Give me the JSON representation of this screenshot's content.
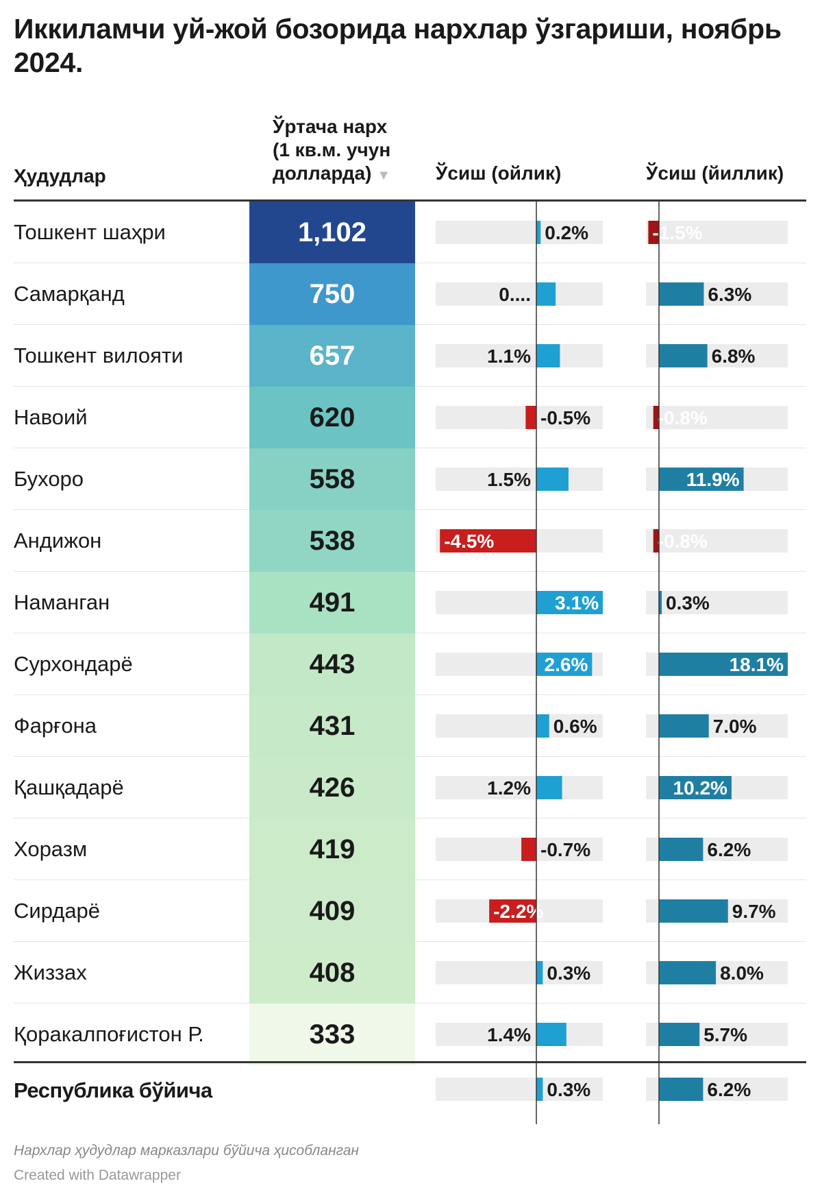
{
  "title": "Иккиламчи уй-жой бозорида нархлар ўзгариши, ноябрь 2024.",
  "headers": {
    "region": "Ҳудудлар",
    "price_line1": "Ўртача нарх",
    "price_line2": "(1 кв.м. учун",
    "price_line3": "долларда)",
    "sort_icon": "▼",
    "monthly": "Ўсиш (ойлик)",
    "yearly": "Ўсиш (йиллик)"
  },
  "colors": {
    "positive_monthly": "#1fa0d2",
    "negative": "#c81e1e",
    "negative_yearly_small": "#a01414",
    "positive_yearly": "#1f7fa3",
    "track": "#ececec",
    "axis": "#333333"
  },
  "chart_data": {
    "type": "table",
    "columns": [
      "Ҳудудлар",
      "Ўртача нарх (1 кв.м. учун долларда)",
      "Ўсиш (ойлик)",
      "Ўсиш (йиллик)"
    ],
    "monthly_range": [
      -4.5,
      3.1
    ],
    "yearly_range": [
      -1.5,
      18.1
    ],
    "rows": [
      {
        "region": "Тошкент шаҳри",
        "price": "1,102",
        "price_value": 1102,
        "price_bg": "#23478f",
        "price_fg": "#ffffff",
        "monthly": 0.2,
        "monthly_label": "0.2%",
        "yearly": -1.5,
        "yearly_label": "-1.5%"
      },
      {
        "region": "Самарқанд",
        "price": "750",
        "price_value": 750,
        "price_bg": "#3f98cb",
        "price_fg": "#ffffff",
        "monthly": 0.9,
        "monthly_label": "0....",
        "yearly": 6.3,
        "yearly_label": "6.3%"
      },
      {
        "region": "Тошкент вилояти",
        "price": "657",
        "price_value": 657,
        "price_bg": "#5bb4c9",
        "price_fg": "#ffffff",
        "monthly": 1.1,
        "monthly_label": "1.1%",
        "yearly": 6.8,
        "yearly_label": "6.8%"
      },
      {
        "region": "Навоий",
        "price": "620",
        "price_value": 620,
        "price_bg": "#6cc3c4",
        "price_fg": "#1a1a1a",
        "monthly": -0.5,
        "monthly_label": "-0.5%",
        "yearly": -0.8,
        "yearly_label": "-0.8%"
      },
      {
        "region": "Бухоро",
        "price": "558",
        "price_value": 558,
        "price_bg": "#86d1c3",
        "price_fg": "#1a1a1a",
        "monthly": 1.5,
        "monthly_label": "1.5%",
        "yearly": 11.9,
        "yearly_label": "11.9%"
      },
      {
        "region": "Андижон",
        "price": "538",
        "price_value": 538,
        "price_bg": "#91d6c4",
        "price_fg": "#1a1a1a",
        "monthly": -4.5,
        "monthly_label": "-4.5%",
        "yearly": -0.8,
        "yearly_label": "-0.8%"
      },
      {
        "region": "Наманган",
        "price": "491",
        "price_value": 491,
        "price_bg": "#a9e1c3",
        "price_fg": "#1a1a1a",
        "monthly": 3.1,
        "monthly_label": "3.1%",
        "yearly": 0.3,
        "yearly_label": "0.3%"
      },
      {
        "region": "Сурхондарё",
        "price": "443",
        "price_value": 443,
        "price_bg": "#c3e8c7",
        "price_fg": "#1a1a1a",
        "monthly": 2.6,
        "monthly_label": "2.6%",
        "yearly": 18.1,
        "yearly_label": "18.1%"
      },
      {
        "region": "Фарғона",
        "price": "431",
        "price_value": 431,
        "price_bg": "#c6e9c8",
        "price_fg": "#1a1a1a",
        "monthly": 0.6,
        "monthly_label": "0.6%",
        "yearly": 7.0,
        "yearly_label": "7.0%"
      },
      {
        "region": "Қашқадарё",
        "price": "426",
        "price_value": 426,
        "price_bg": "#c8eac8",
        "price_fg": "#1a1a1a",
        "monthly": 1.2,
        "monthly_label": "1.2%",
        "yearly": 10.2,
        "yearly_label": "10.2%"
      },
      {
        "region": "Хоразм",
        "price": "419",
        "price_value": 419,
        "price_bg": "#cbebc9",
        "price_fg": "#1a1a1a",
        "monthly": -0.7,
        "monthly_label": "-0.7%",
        "yearly": 6.2,
        "yearly_label": "6.2%"
      },
      {
        "region": "Сирдарё",
        "price": "409",
        "price_value": 409,
        "price_bg": "#cdebca",
        "price_fg": "#1a1a1a",
        "monthly": -2.2,
        "monthly_label": "-2.2%",
        "yearly": 9.7,
        "yearly_label": "9.7%"
      },
      {
        "region": "Жиззах",
        "price": "408",
        "price_value": 408,
        "price_bg": "#ceecca",
        "price_fg": "#1a1a1a",
        "monthly": 0.3,
        "monthly_label": "0.3%",
        "yearly": 8.0,
        "yearly_label": "8.0%"
      },
      {
        "region": "Қоракалпоғистон Р.",
        "price": "333",
        "price_value": 333,
        "price_bg": "#f0f8ea",
        "price_fg": "#1a1a1a",
        "monthly": 1.4,
        "monthly_label": "1.4%",
        "yearly": 5.7,
        "yearly_label": "5.7%"
      }
    ],
    "total": {
      "region": "Республика бўйича",
      "monthly": 0.3,
      "monthly_label": "0.3%",
      "yearly": 6.2,
      "yearly_label": "6.2%"
    }
  },
  "footer": {
    "note": "Нархлар ҳудудлар марказлари бўйича ҳисобланган",
    "credit": "Created with Datawrapper"
  }
}
